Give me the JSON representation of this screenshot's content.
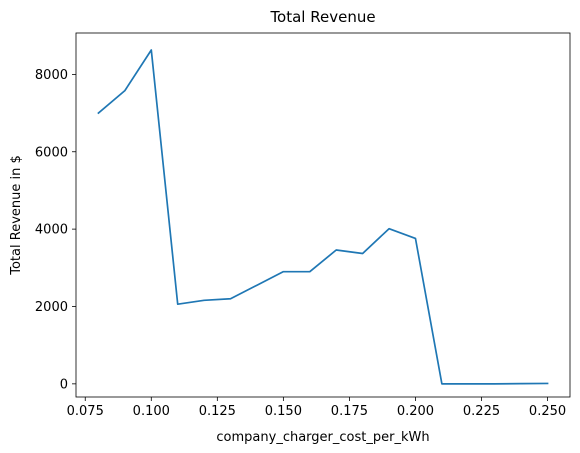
{
  "chart_data": {
    "type": "line",
    "title": "Total Revenue",
    "xlabel": "company_charger_cost_per_kWh",
    "ylabel": "Total Revenue in $",
    "xlim": [
      0.0715,
      0.2585
    ],
    "ylim": [
      -340,
      9070
    ],
    "xticks": [
      0.075,
      0.1,
      0.125,
      0.15,
      0.175,
      0.2,
      0.225,
      0.25
    ],
    "xtick_labels": [
      "0.075",
      "0.100",
      "0.125",
      "0.150",
      "0.175",
      "0.200",
      "0.225",
      "0.250"
    ],
    "yticks": [
      0,
      2000,
      4000,
      6000,
      8000
    ],
    "ytick_labels": [
      "0",
      "2000",
      "4000",
      "6000",
      "8000"
    ],
    "grid": false,
    "series": [
      {
        "color": "#1f77b4",
        "x": [
          0.08,
          0.09,
          0.1,
          0.11,
          0.12,
          0.13,
          0.14,
          0.15,
          0.16,
          0.17,
          0.18,
          0.19,
          0.2,
          0.21,
          0.22,
          0.23,
          0.24,
          0.25
        ],
        "y": [
          7000,
          7580,
          8630,
          2060,
          2160,
          2200,
          2550,
          2900,
          2900,
          3460,
          3370,
          4010,
          3760,
          0,
          0,
          0,
          5,
          10
        ]
      }
    ]
  }
}
